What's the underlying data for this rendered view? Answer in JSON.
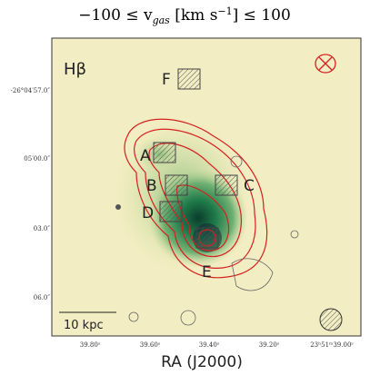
{
  "title": {
    "parts": [
      "−100 ≤ v",
      "gas",
      " [km s",
      "−1",
      "] ≤ 100"
    ]
  },
  "panel_label": "Hβ",
  "regions": [
    "A",
    "B",
    "C",
    "D",
    "E",
    "F"
  ],
  "scale_bar": "10 kpc",
  "x_axis": {
    "label": "RA (J2000)",
    "ticks": [
      "39.80ˢ",
      "39.60ˢ",
      "39.40ˢ",
      "39.20ˢ",
      "23ʰ51ᵐ39.00ˢ"
    ]
  },
  "y_axis": {
    "ticks": [
      "-26°04′57.0″",
      "05′00.0″",
      "03.0″",
      "06.0″"
    ]
  }
}
